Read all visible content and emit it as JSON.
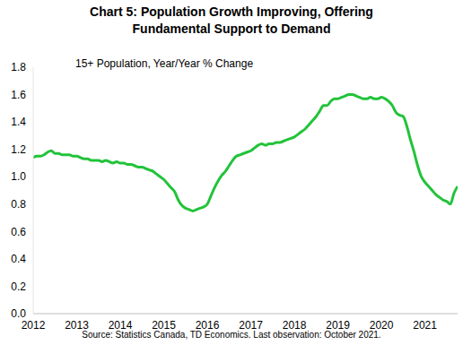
{
  "chart_data": {
    "type": "line",
    "title": [
      "Chart 5: Population Growth Improving, Offering",
      "Fundamental Support to Demand"
    ],
    "subtitle": "15+ Population, Year/Year % Change",
    "source": "Source: Statistics Canada, TD Economics. Last observation: October 2021.",
    "x": [
      2012,
      2012.083,
      2012.167,
      2012.25,
      2012.333,
      2012.417,
      2012.5,
      2012.583,
      2012.667,
      2012.75,
      2012.833,
      2012.917,
      2013,
      2013.083,
      2013.167,
      2013.25,
      2013.333,
      2013.417,
      2013.5,
      2013.583,
      2013.667,
      2013.75,
      2013.833,
      2013.917,
      2014,
      2014.083,
      2014.167,
      2014.25,
      2014.333,
      2014.417,
      2014.5,
      2014.583,
      2014.667,
      2014.75,
      2014.833,
      2014.917,
      2015,
      2015.083,
      2015.167,
      2015.25,
      2015.333,
      2015.417,
      2015.5,
      2015.583,
      2015.667,
      2015.75,
      2015.833,
      2015.917,
      2016,
      2016.083,
      2016.167,
      2016.25,
      2016.333,
      2016.417,
      2016.5,
      2016.583,
      2016.667,
      2016.75,
      2016.833,
      2016.917,
      2017,
      2017.083,
      2017.167,
      2017.25,
      2017.333,
      2017.417,
      2017.5,
      2017.583,
      2017.667,
      2017.75,
      2017.833,
      2017.917,
      2018,
      2018.083,
      2018.167,
      2018.25,
      2018.333,
      2018.417,
      2018.5,
      2018.583,
      2018.667,
      2018.75,
      2018.833,
      2018.917,
      2019,
      2019.083,
      2019.167,
      2019.25,
      2019.333,
      2019.417,
      2019.5,
      2019.583,
      2019.667,
      2019.75,
      2019.833,
      2019.917,
      2020,
      2020.083,
      2020.167,
      2020.25,
      2020.333,
      2020.417,
      2020.5,
      2020.583,
      2020.667,
      2020.75,
      2020.833,
      2020.917,
      2021,
      2021.083,
      2021.167,
      2021.25,
      2021.333,
      2021.417,
      2021.5,
      2021.583,
      2021.667,
      2021.75
    ],
    "values": [
      1.14,
      1.15,
      1.15,
      1.16,
      1.18,
      1.19,
      1.17,
      1.17,
      1.16,
      1.16,
      1.16,
      1.15,
      1.15,
      1.14,
      1.13,
      1.13,
      1.12,
      1.12,
      1.12,
      1.11,
      1.12,
      1.11,
      1.1,
      1.11,
      1.1,
      1.1,
      1.09,
      1.09,
      1.08,
      1.07,
      1.07,
      1.06,
      1.05,
      1.04,
      1.02,
      1.0,
      0.98,
      0.95,
      0.92,
      0.89,
      0.83,
      0.79,
      0.77,
      0.76,
      0.75,
      0.76,
      0.77,
      0.78,
      0.8,
      0.86,
      0.92,
      0.97,
      1.01,
      1.04,
      1.08,
      1.12,
      1.15,
      1.16,
      1.17,
      1.18,
      1.19,
      1.21,
      1.23,
      1.24,
      1.23,
      1.24,
      1.24,
      1.25,
      1.25,
      1.26,
      1.27,
      1.28,
      1.29,
      1.31,
      1.33,
      1.35,
      1.38,
      1.41,
      1.44,
      1.48,
      1.52,
      1.52,
      1.55,
      1.57,
      1.57,
      1.58,
      1.59,
      1.6,
      1.6,
      1.59,
      1.58,
      1.57,
      1.57,
      1.58,
      1.57,
      1.57,
      1.58,
      1.57,
      1.55,
      1.52,
      1.47,
      1.45,
      1.44,
      1.37,
      1.27,
      1.18,
      1.08,
      1.0,
      0.96,
      0.93,
      0.9,
      0.87,
      0.85,
      0.83,
      0.82,
      0.8,
      0.88,
      0.93
    ],
    "color": "#22c33a",
    "xlim": [
      2012,
      2021.75
    ],
    "xticks": [
      2012,
      2013,
      2014,
      2015,
      2016,
      2017,
      2018,
      2019,
      2020,
      2021
    ],
    "ylim": [
      0,
      1.8
    ],
    "yticks": [
      {
        "value": 0,
        "label": "0.0"
      },
      {
        "value": 0.2,
        "label": "0.2"
      },
      {
        "value": 0.4,
        "label": "0.4"
      },
      {
        "value": 0.6,
        "label": "0.6"
      },
      {
        "value": 0.8,
        "label": "0.8"
      },
      {
        "value": 1.0,
        "label": "1.0"
      },
      {
        "value": 1.2,
        "label": "1.2"
      },
      {
        "value": 1.4,
        "label": "1.4"
      },
      {
        "value": 1.6,
        "label": "1.6"
      },
      {
        "value": 1.8,
        "label": "1.8"
      }
    ],
    "grid": false
  }
}
